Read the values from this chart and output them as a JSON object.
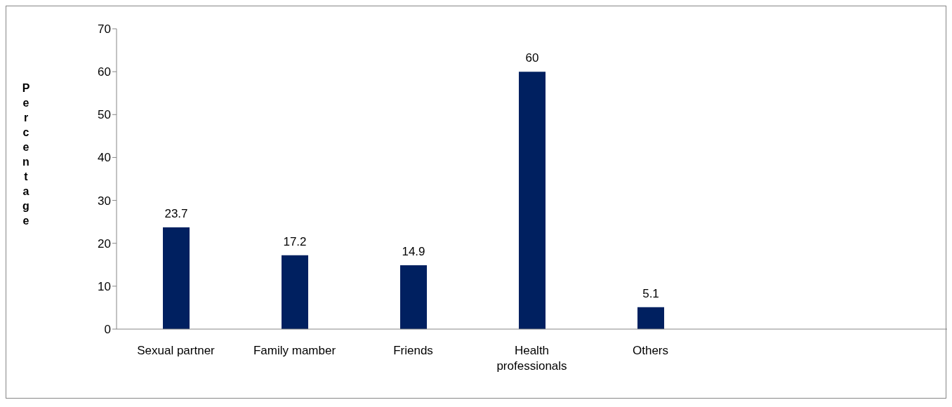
{
  "chart_data": {
    "type": "bar",
    "ylabel": "Percentage",
    "categories": [
      "Sexual partner",
      "Family mamber",
      "Friends",
      "Health professionals",
      "Others",
      null,
      null
    ],
    "values": [
      23.7,
      17.2,
      14.9,
      60,
      5.1,
      null,
      null
    ],
    "color": "#002060",
    "ylim": [
      0,
      70
    ],
    "yticks": [
      0,
      10,
      20,
      30,
      40,
      50,
      60,
      70
    ],
    "data_labels": true,
    "grid": false
  }
}
